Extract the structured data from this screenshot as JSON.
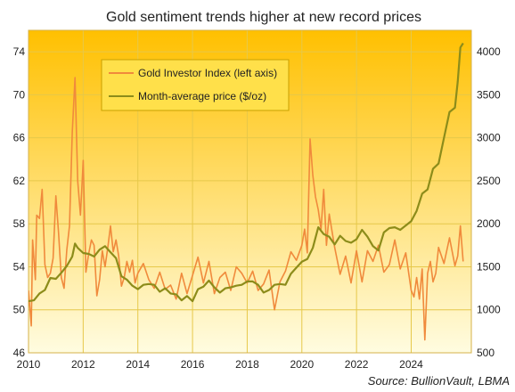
{
  "chart_data": {
    "type": "line",
    "title": "Gold sentiment trends higher at new record prices",
    "source": "Source: BullionVault, LBMA",
    "x_ticks": [
      "2010",
      "2012",
      "2014",
      "2016",
      "2018",
      "2020",
      "2022",
      "2024"
    ],
    "x_range": [
      2010,
      2026.2
    ],
    "y_left_ticks": [
      "46",
      "50",
      "54",
      "58",
      "62",
      "66",
      "70",
      "74"
    ],
    "y_left_range": [
      46,
      76
    ],
    "y_right_ticks": [
      "500",
      "1000",
      "1500",
      "2000",
      "2500",
      "3000",
      "3500",
      "4000"
    ],
    "y_right_range": [
      500,
      4250
    ],
    "legend_position": "top-left",
    "grid": true,
    "colors": {
      "background_top": "#ffc000",
      "background_bottom": "#fffce0",
      "index_line": "#f08a3c",
      "price_line": "#8c8c1a",
      "legend_box": "#ffe04a",
      "grid": "#e6c84a"
    },
    "series": [
      {
        "name": "Gold Investor Index (left axis)",
        "axis": "left",
        "x": [
          2010.0,
          2010.1,
          2010.15,
          2010.25,
          2010.3,
          2010.4,
          2010.5,
          2010.6,
          2010.7,
          2010.8,
          2010.9,
          2011.0,
          2011.1,
          2011.2,
          2011.3,
          2011.4,
          2011.5,
          2011.6,
          2011.7,
          2011.8,
          2011.9,
          2012.0,
          2012.1,
          2012.2,
          2012.3,
          2012.4,
          2012.5,
          2012.6,
          2012.7,
          2012.8,
          2012.9,
          2013.0,
          2013.1,
          2013.2,
          2013.3,
          2013.4,
          2013.5,
          2013.6,
          2013.7,
          2013.8,
          2013.9,
          2014.0,
          2014.2,
          2014.4,
          2014.6,
          2014.8,
          2015.0,
          2015.2,
          2015.4,
          2015.6,
          2015.8,
          2016.0,
          2016.2,
          2016.4,
          2016.6,
          2016.8,
          2017.0,
          2017.2,
          2017.4,
          2017.6,
          2017.8,
          2018.0,
          2018.2,
          2018.4,
          2018.6,
          2018.8,
          2019.0,
          2019.2,
          2019.4,
          2019.6,
          2019.8,
          2020.0,
          2020.1,
          2020.2,
          2020.3,
          2020.4,
          2020.5,
          2020.6,
          2020.7,
          2020.8,
          2020.9,
          2021.0,
          2021.2,
          2021.4,
          2021.6,
          2021.8,
          2022.0,
          2022.2,
          2022.4,
          2022.6,
          2022.8,
          2023.0,
          2023.2,
          2023.4,
          2023.6,
          2023.8,
          2024.0,
          2024.1,
          2024.2,
          2024.3,
          2024.4,
          2024.5,
          2024.6,
          2024.7,
          2024.8,
          2024.9,
          2025.0,
          2025.2,
          2025.4,
          2025.6,
          2025.7,
          2025.8,
          2025.9
        ],
        "values": [
          51.8,
          48.5,
          56.5,
          52.8,
          58.8,
          58.5,
          61.2,
          54.2,
          53.0,
          53.4,
          54.8,
          60.6,
          57.2,
          53.0,
          52.0,
          55.6,
          57.8,
          66.5,
          71.6,
          62.0,
          58.8,
          63.9,
          53.5,
          55.2,
          56.5,
          56.0,
          51.3,
          52.8,
          55.5,
          54.0,
          55.8,
          57.8,
          55.4,
          56.5,
          55.0,
          52.2,
          53.0,
          54.5,
          53.5,
          54.6,
          52.5,
          53.4,
          54.3,
          52.8,
          52.0,
          53.5,
          51.9,
          52.3,
          51.0,
          53.4,
          51.5,
          53.2,
          54.9,
          52.5,
          54.5,
          51.5,
          53.0,
          53.5,
          51.8,
          54.0,
          53.4,
          52.5,
          53.6,
          51.8,
          52.4,
          53.7,
          50.0,
          52.6,
          53.6,
          55.4,
          54.6,
          56.0,
          57.5,
          55.3,
          65.9,
          62.5,
          60.5,
          59.3,
          57.5,
          61.2,
          56.0,
          58.9,
          55.8,
          53.3,
          55.0,
          52.5,
          55.5,
          52.6,
          55.5,
          54.5,
          56.0,
          53.5,
          54.2,
          56.5,
          53.8,
          55.3,
          51.8,
          51.2,
          53.0,
          51.0,
          53.8,
          47.2,
          53.4,
          54.5,
          52.6,
          53.4,
          55.8,
          54.3,
          56.7,
          54.1,
          55.0,
          57.8,
          54.5
        ]
      },
      {
        "name": "Month-average price ($/oz)",
        "axis": "right",
        "x": [
          2010.0,
          2010.2,
          2010.4,
          2010.6,
          2010.8,
          2011.0,
          2011.2,
          2011.4,
          2011.6,
          2011.7,
          2011.8,
          2012.0,
          2012.2,
          2012.4,
          2012.6,
          2012.8,
          2013.0,
          2013.2,
          2013.4,
          2013.6,
          2013.8,
          2014.0,
          2014.2,
          2014.4,
          2014.6,
          2014.8,
          2015.0,
          2015.2,
          2015.4,
          2015.6,
          2015.8,
          2016.0,
          2016.2,
          2016.4,
          2016.6,
          2016.8,
          2017.0,
          2017.2,
          2017.4,
          2017.6,
          2017.8,
          2018.0,
          2018.2,
          2018.4,
          2018.6,
          2018.8,
          2019.0,
          2019.2,
          2019.4,
          2019.6,
          2019.8,
          2020.0,
          2020.2,
          2020.4,
          2020.6,
          2020.8,
          2021.0,
          2021.2,
          2021.4,
          2021.6,
          2021.8,
          2022.0,
          2022.2,
          2022.4,
          2022.6,
          2022.8,
          2023.0,
          2023.2,
          2023.4,
          2023.6,
          2023.8,
          2024.0,
          2024.2,
          2024.4,
          2024.6,
          2024.8,
          2025.0,
          2025.2,
          2025.4,
          2025.6,
          2025.7,
          2025.8,
          2025.9
        ],
        "values": [
          1100,
          1110,
          1190,
          1230,
          1370,
          1360,
          1430,
          1510,
          1620,
          1770,
          1720,
          1660,
          1650,
          1620,
          1700,
          1740,
          1670,
          1600,
          1390,
          1350,
          1280,
          1240,
          1290,
          1300,
          1290,
          1210,
          1250,
          1190,
          1180,
          1110,
          1160,
          1100,
          1240,
          1270,
          1340,
          1260,
          1200,
          1250,
          1260,
          1280,
          1290,
          1330,
          1330,
          1290,
          1200,
          1230,
          1290,
          1300,
          1290,
          1420,
          1490,
          1560,
          1590,
          1720,
          1960,
          1880,
          1850,
          1760,
          1860,
          1800,
          1780,
          1820,
          1930,
          1850,
          1740,
          1690,
          1900,
          1950,
          1960,
          1930,
          1980,
          2030,
          2150,
          2350,
          2400,
          2640,
          2700,
          3000,
          3300,
          3350,
          3650,
          4050,
          4100
        ]
      }
    ]
  }
}
